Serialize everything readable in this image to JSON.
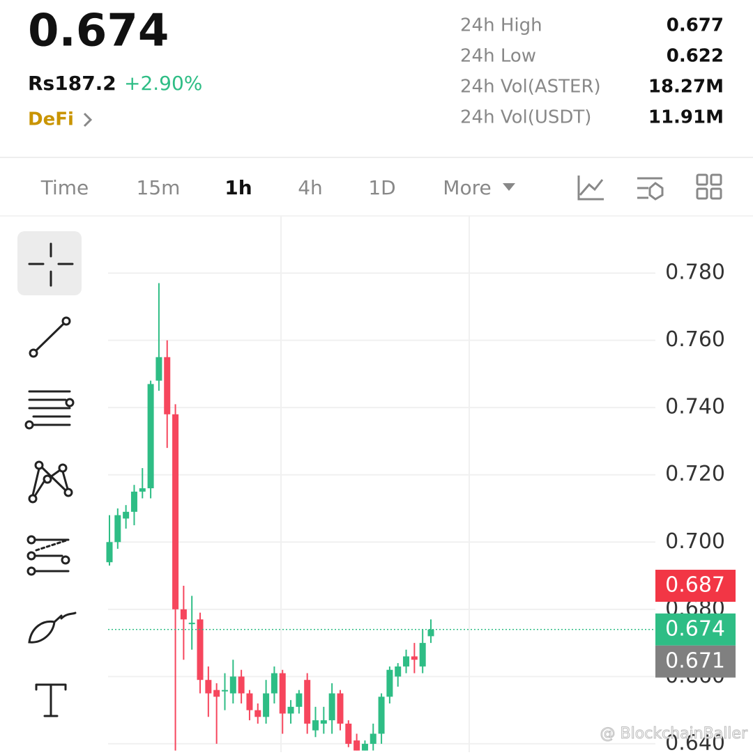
{
  "header": {
    "price": "0.674",
    "fiat": "Rs187.2",
    "change": "+2.90%",
    "tag": "DeFi"
  },
  "stats": [
    {
      "label": "24h High",
      "value": "0.677"
    },
    {
      "label": "24h Low",
      "value": "0.622"
    },
    {
      "label": "24h Vol(ASTER)",
      "value": "18.27M"
    },
    {
      "label": "24h Vol(USDT)",
      "value": "11.91M"
    }
  ],
  "tabs": [
    "Time",
    "15m",
    "1h",
    "4h",
    "1D",
    "More"
  ],
  "active_tab": "1h",
  "watermark": "@ BlockchainBaller",
  "chart_data": {
    "type": "candlestick",
    "open": [
      0.694,
      0.7,
      0.707,
      0.709,
      0.715,
      0.716,
      0.748,
      0.755,
      0.738,
      0.68,
      0.676,
      0.677,
      0.659,
      0.656,
      0.656,
      0.655,
      0.66,
      0.655,
      0.65,
      0.648,
      0.655,
      0.661,
      0.649,
      0.651,
      0.659,
      0.644,
      0.646,
      0.647,
      0.655,
      0.646,
      0.641,
      0.638,
      0.64,
      0.643,
      0.654,
      0.66,
      0.663,
      0.666,
      0.663,
      0.672
    ],
    "high": [
      0.708,
      0.71,
      0.711,
      0.717,
      0.722,
      0.748,
      0.777,
      0.76,
      0.741,
      0.687,
      0.684,
      0.679,
      0.663,
      0.658,
      0.661,
      0.665,
      0.662,
      0.656,
      0.652,
      0.659,
      0.663,
      0.662,
      0.653,
      0.656,
      0.661,
      0.651,
      0.651,
      0.658,
      0.656,
      0.647,
      0.643,
      0.641,
      0.646,
      0.655,
      0.663,
      0.664,
      0.668,
      0.67,
      0.674,
      0.677
    ],
    "low": [
      0.693,
      0.698,
      0.704,
      0.705,
      0.713,
      0.713,
      0.745,
      0.728,
      0.638,
      0.665,
      0.668,
      0.655,
      0.648,
      0.64,
      0.65,
      0.652,
      0.652,
      0.647,
      0.646,
      0.646,
      0.652,
      0.643,
      0.646,
      0.649,
      0.643,
      0.642,
      0.643,
      0.643,
      0.644,
      0.639,
      0.638,
      0.638,
      0.638,
      0.64,
      0.652,
      0.657,
      0.661,
      0.661,
      0.661,
      0.67
    ],
    "close": [
      0.7,
      0.708,
      0.709,
      0.715,
      0.716,
      0.747,
      0.755,
      0.738,
      0.68,
      0.677,
      0.676,
      0.659,
      0.655,
      0.654,
      0.656,
      0.66,
      0.655,
      0.65,
      0.648,
      0.655,
      0.661,
      0.649,
      0.651,
      0.655,
      0.646,
      0.647,
      0.647,
      0.655,
      0.646,
      0.64,
      0.638,
      0.64,
      0.643,
      0.654,
      0.662,
      0.663,
      0.666,
      0.665,
      0.67,
      0.674
    ],
    "up_color": "#2ebd85",
    "down_color": "#f6465d",
    "ylim": [
      0.6375,
      0.797
    ],
    "yticks": [
      {
        "value": 0.64,
        "label": "0.640"
      },
      {
        "value": 0.66,
        "label": "0.660"
      },
      {
        "value": 0.68,
        "label": "0.680"
      },
      {
        "value": 0.7,
        "label": "0.700"
      },
      {
        "value": 0.72,
        "label": "0.720"
      },
      {
        "value": 0.74,
        "label": "0.740"
      },
      {
        "value": 0.76,
        "label": "0.760"
      },
      {
        "value": 0.78,
        "label": "0.780"
      }
    ],
    "grid": true,
    "price_tags": [
      {
        "value": 0.687,
        "color": "#f23645"
      },
      {
        "value": 0.674,
        "color": "#2ebd85"
      },
      {
        "value": 0.671,
        "color": "#808080"
      }
    ],
    "current_tag": 1
  }
}
